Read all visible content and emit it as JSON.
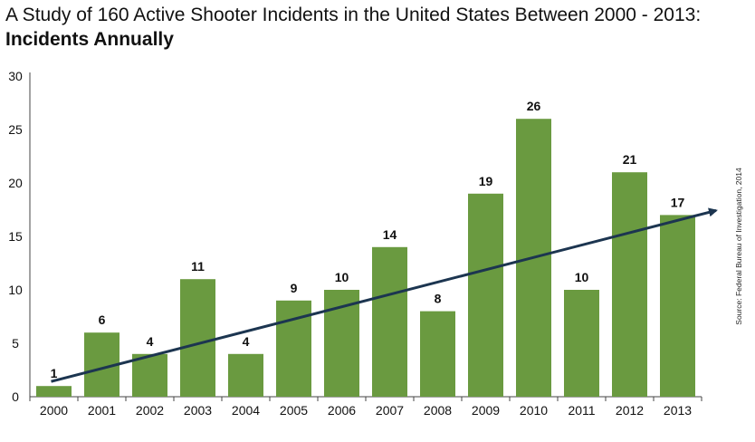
{
  "title": "A Study of 160 Active Shooter Incidents in the United States Between 2000 - 2013:",
  "subtitle": "Incidents Annually",
  "source": "Source: Federal Bureau of Investigation, 2014",
  "colors": {
    "bar": "#6a9a40",
    "trend": "#1c3550",
    "axis": "#444444",
    "text": "#111111"
  },
  "chart_data": {
    "type": "bar",
    "title": "A Study of 160 Active Shooter Incidents in the United States Between 2000 - 2013:",
    "subtitle": "Incidents Annually",
    "xlabel": "",
    "ylabel": "",
    "categories": [
      "2000",
      "2001",
      "2002",
      "2003",
      "2004",
      "2005",
      "2006",
      "2007",
      "2008",
      "2009",
      "2010",
      "2011",
      "2012",
      "2013"
    ],
    "values": [
      1,
      6,
      4,
      11,
      4,
      9,
      10,
      14,
      8,
      19,
      26,
      10,
      21,
      17
    ],
    "ylim": [
      0,
      30
    ],
    "yticks": [
      0,
      5,
      10,
      15,
      20,
      25,
      30
    ],
    "grid": false,
    "data_labels": true,
    "trend_line": {
      "from": 1,
      "to": 17,
      "arrow": true
    }
  }
}
